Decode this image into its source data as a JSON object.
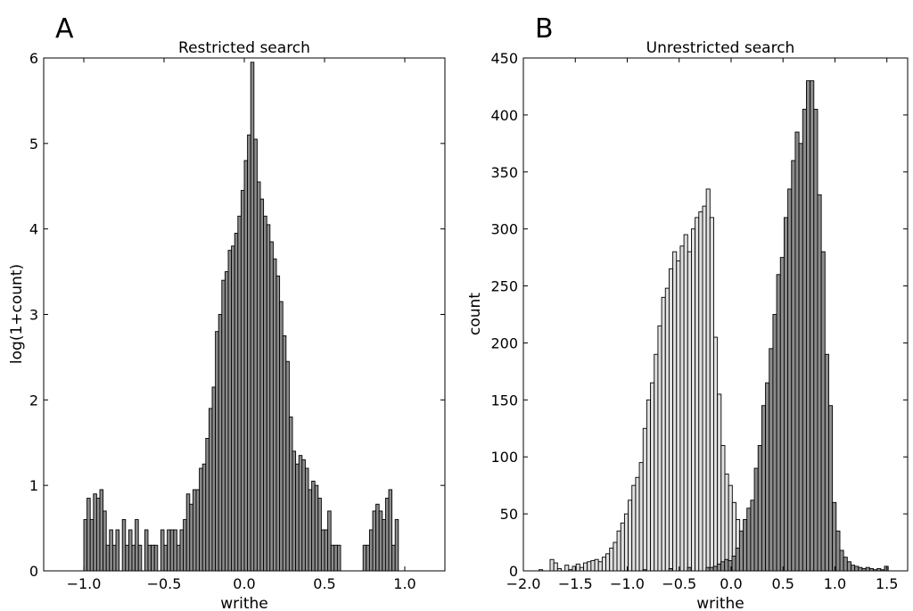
{
  "chart_data": [
    {
      "type": "bar",
      "panel_label": "A",
      "title": "Restricted search",
      "xlabel": "writhe",
      "ylabel": "log(1+count)",
      "xlim": [
        -1.25,
        1.25
      ],
      "ylim": [
        0,
        6
      ],
      "x_ticks": [
        -1.0,
        -0.5,
        0.0,
        0.5,
        1.0
      ],
      "x_tick_labels": [
        "−1.0",
        "−0.5",
        "0.0",
        "0.5",
        "1.0"
      ],
      "y_ticks": [
        0,
        1,
        2,
        3,
        4,
        5,
        6
      ],
      "y_tick_labels": [
        "0",
        "1",
        "2",
        "3",
        "4",
        "5",
        "6"
      ],
      "grid": false,
      "bin_width": 0.02,
      "bar_color": "#8c8c8c",
      "series": [
        {
          "bins": [
            {
              "x": -1.0,
              "y": 0.6
            },
            {
              "x": -0.98,
              "y": 0.85
            },
            {
              "x": -0.96,
              "y": 0.6
            },
            {
              "x": -0.94,
              "y": 0.9
            },
            {
              "x": -0.92,
              "y": 0.85
            },
            {
              "x": -0.9,
              "y": 0.95
            },
            {
              "x": -0.88,
              "y": 0.7
            },
            {
              "x": -0.86,
              "y": 0.3
            },
            {
              "x": -0.84,
              "y": 0.48
            },
            {
              "x": -0.82,
              "y": 0.3
            },
            {
              "x": -0.8,
              "y": 0.48
            },
            {
              "x": -0.76,
              "y": 0.6
            },
            {
              "x": -0.74,
              "y": 0.3
            },
            {
              "x": -0.72,
              "y": 0.48
            },
            {
              "x": -0.7,
              "y": 0.3
            },
            {
              "x": -0.68,
              "y": 0.6
            },
            {
              "x": -0.66,
              "y": 0.3
            },
            {
              "x": -0.62,
              "y": 0.48
            },
            {
              "x": -0.6,
              "y": 0.3
            },
            {
              "x": -0.58,
              "y": 0.3
            },
            {
              "x": -0.56,
              "y": 0.3
            },
            {
              "x": -0.52,
              "y": 0.48
            },
            {
              "x": -0.5,
              "y": 0.3
            },
            {
              "x": -0.48,
              "y": 0.48
            },
            {
              "x": -0.46,
              "y": 0.48
            },
            {
              "x": -0.44,
              "y": 0.48
            },
            {
              "x": -0.42,
              "y": 0.3
            },
            {
              "x": -0.4,
              "y": 0.48
            },
            {
              "x": -0.38,
              "y": 0.6
            },
            {
              "x": -0.36,
              "y": 0.9
            },
            {
              "x": -0.34,
              "y": 0.78
            },
            {
              "x": -0.32,
              "y": 0.95
            },
            {
              "x": -0.3,
              "y": 0.95
            },
            {
              "x": -0.28,
              "y": 1.2
            },
            {
              "x": -0.26,
              "y": 1.25
            },
            {
              "x": -0.24,
              "y": 1.55
            },
            {
              "x": -0.22,
              "y": 1.9
            },
            {
              "x": -0.2,
              "y": 2.15
            },
            {
              "x": -0.18,
              "y": 2.8
            },
            {
              "x": -0.16,
              "y": 3.0
            },
            {
              "x": -0.14,
              "y": 3.4
            },
            {
              "x": -0.12,
              "y": 3.5
            },
            {
              "x": -0.1,
              "y": 3.75
            },
            {
              "x": -0.08,
              "y": 3.8
            },
            {
              "x": -0.06,
              "y": 3.95
            },
            {
              "x": -0.04,
              "y": 4.15
            },
            {
              "x": -0.02,
              "y": 4.45
            },
            {
              "x": 0.0,
              "y": 4.8
            },
            {
              "x": 0.02,
              "y": 5.1
            },
            {
              "x": 0.04,
              "y": 5.95
            },
            {
              "x": 0.06,
              "y": 5.05
            },
            {
              "x": 0.08,
              "y": 4.55
            },
            {
              "x": 0.1,
              "y": 4.35
            },
            {
              "x": 0.12,
              "y": 4.15
            },
            {
              "x": 0.14,
              "y": 4.05
            },
            {
              "x": 0.16,
              "y": 3.85
            },
            {
              "x": 0.18,
              "y": 3.65
            },
            {
              "x": 0.2,
              "y": 3.45
            },
            {
              "x": 0.22,
              "y": 3.15
            },
            {
              "x": 0.24,
              "y": 2.75
            },
            {
              "x": 0.26,
              "y": 2.45
            },
            {
              "x": 0.28,
              "y": 1.8
            },
            {
              "x": 0.3,
              "y": 1.4
            },
            {
              "x": 0.32,
              "y": 1.25
            },
            {
              "x": 0.34,
              "y": 1.35
            },
            {
              "x": 0.36,
              "y": 1.3
            },
            {
              "x": 0.38,
              "y": 1.2
            },
            {
              "x": 0.4,
              "y": 0.95
            },
            {
              "x": 0.42,
              "y": 1.05
            },
            {
              "x": 0.44,
              "y": 1.0
            },
            {
              "x": 0.46,
              "y": 0.85
            },
            {
              "x": 0.48,
              "y": 0.48
            },
            {
              "x": 0.5,
              "y": 0.48
            },
            {
              "x": 0.52,
              "y": 0.7
            },
            {
              "x": 0.54,
              "y": 0.3
            },
            {
              "x": 0.56,
              "y": 0.3
            },
            {
              "x": 0.58,
              "y": 0.3
            },
            {
              "x": 0.74,
              "y": 0.3
            },
            {
              "x": 0.76,
              "y": 0.3
            },
            {
              "x": 0.78,
              "y": 0.48
            },
            {
              "x": 0.8,
              "y": 0.7
            },
            {
              "x": 0.82,
              "y": 0.78
            },
            {
              "x": 0.84,
              "y": 0.7
            },
            {
              "x": 0.86,
              "y": 0.6
            },
            {
              "x": 0.88,
              "y": 0.85
            },
            {
              "x": 0.9,
              "y": 0.95
            },
            {
              "x": 0.92,
              "y": 0.3
            },
            {
              "x": 0.94,
              "y": 0.6
            }
          ]
        }
      ]
    },
    {
      "type": "bar",
      "panel_label": "B",
      "title": "Unrestricted search",
      "xlabel": "writhe",
      "ylabel": "count",
      "xlim": [
        -2.0,
        1.7
      ],
      "ylim": [
        0,
        450
      ],
      "x_ticks": [
        -2.0,
        -1.5,
        -1.0,
        -0.5,
        0.0,
        0.5,
        1.0,
        1.5
      ],
      "x_tick_labels": [
        "−2.0",
        "−1.5",
        "−1.0",
        "−0.5",
        "0.0",
        "0.5",
        "1.0",
        "1.5"
      ],
      "y_ticks": [
        0,
        50,
        100,
        150,
        200,
        250,
        300,
        350,
        400,
        450
      ],
      "y_tick_labels": [
        "0",
        "50",
        "100",
        "150",
        "200",
        "250",
        "300",
        "350",
        "400",
        "450"
      ],
      "grid": false,
      "series": [
        {
          "color": "#e0e0e0",
          "start": -1.85,
          "bin_width": 0.0358,
          "values": [
            1,
            0,
            0,
            10,
            7,
            2,
            0,
            5,
            1,
            4,
            6,
            3,
            7,
            8,
            9,
            10,
            8,
            12,
            15,
            20,
            25,
            35,
            42,
            50,
            62,
            75,
            82,
            95,
            125,
            150,
            165,
            190,
            215,
            240,
            248,
            265,
            280,
            272,
            285,
            295,
            280,
            300,
            310,
            315,
            320,
            335,
            310,
            205,
            155,
            110,
            85,
            75,
            60,
            45,
            30,
            18,
            12,
            8,
            5
          ]
        },
        {
          "color": "#8c8c8c",
          "start": -0.85,
          "bin_width": 0.0358,
          "values": [
            1,
            0,
            0,
            0,
            0,
            0,
            0,
            2,
            0,
            0,
            0,
            0,
            3,
            0,
            0,
            0,
            0,
            3,
            3,
            4,
            6,
            8,
            10,
            9,
            13,
            20,
            35,
            45,
            55,
            62,
            90,
            110,
            145,
            165,
            195,
            225,
            260,
            275,
            310,
            335,
            360,
            385,
            375,
            405,
            430,
            430,
            405,
            330,
            280,
            190,
            145,
            60,
            35,
            18,
            12,
            8,
            5,
            4,
            3,
            2,
            3,
            2,
            1,
            2,
            1,
            4
          ]
        }
      ]
    }
  ]
}
